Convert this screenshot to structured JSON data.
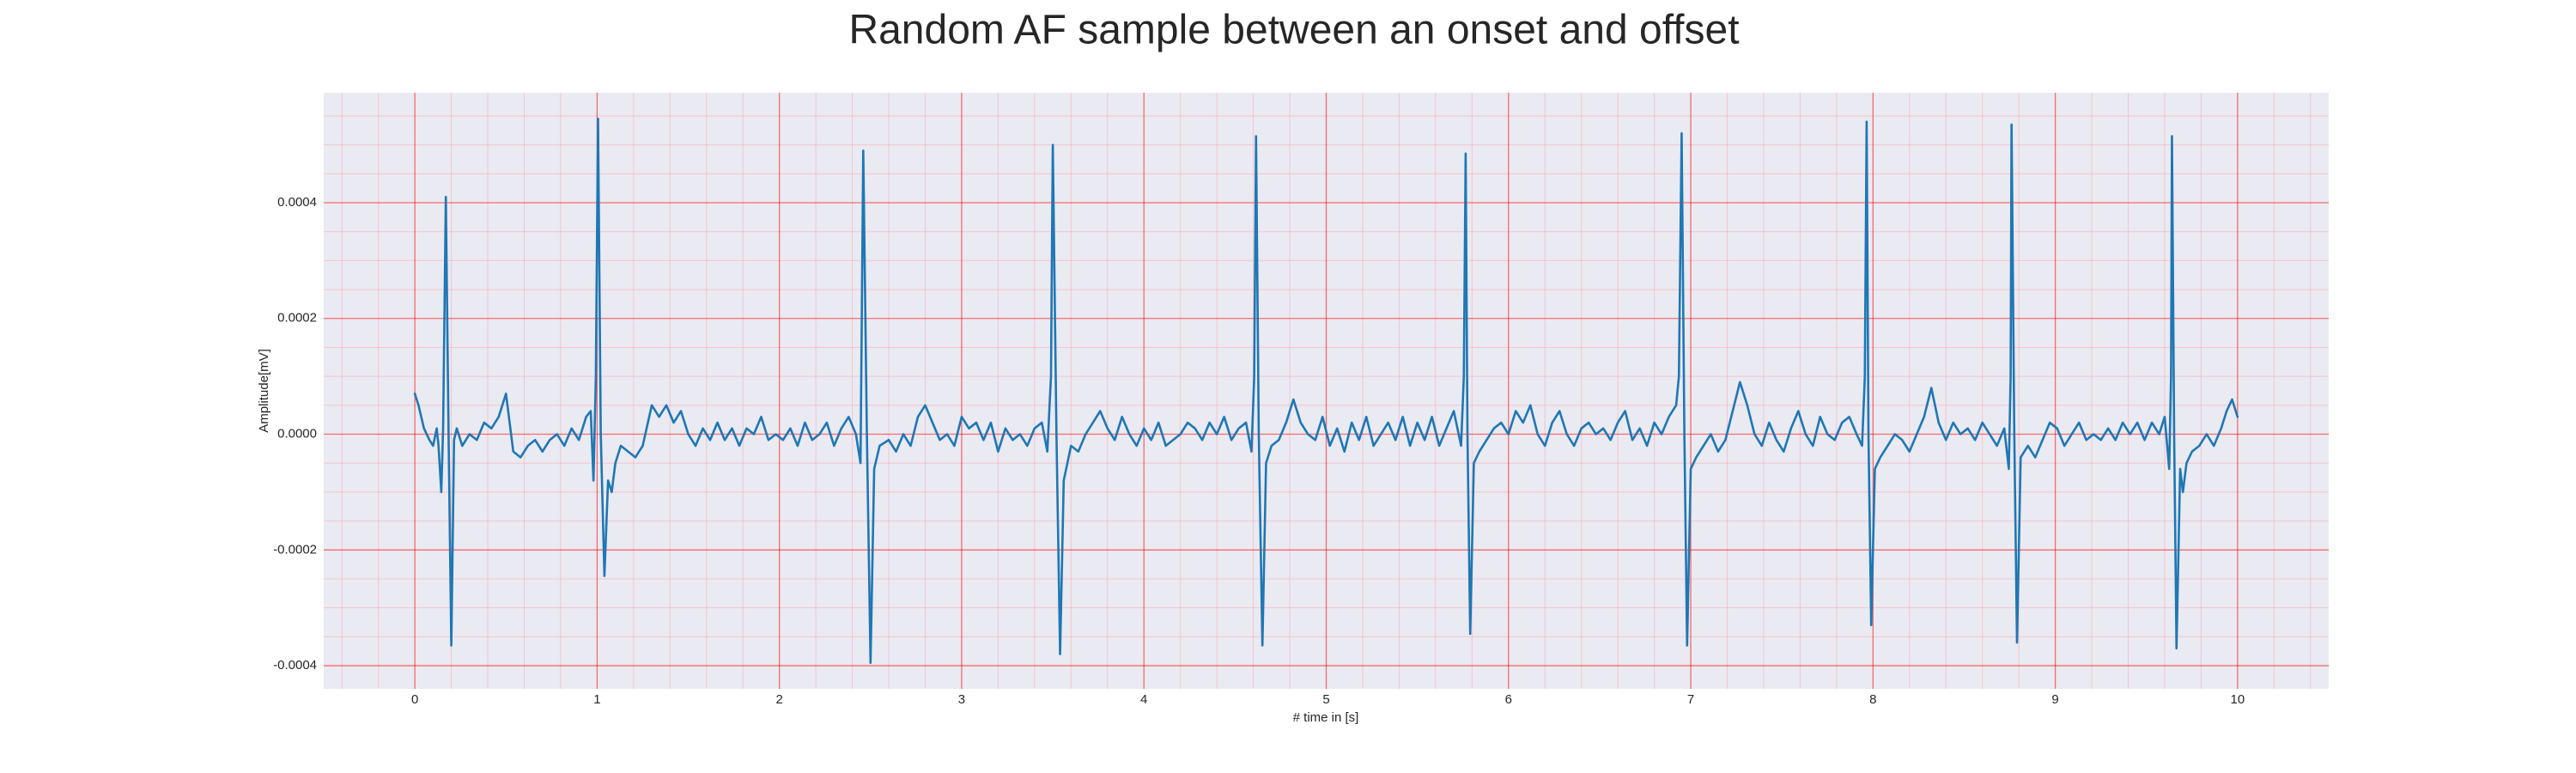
{
  "chart_data": {
    "type": "line",
    "title": "Random AF sample between an onset and offset",
    "xlabel": "# time in [s]",
    "ylabel": "Amplitude[mV]",
    "color": "#1f77b4",
    "grid": true,
    "xlim": [
      -0.5,
      10.5
    ],
    "ylim": [
      -0.00044,
      0.00059
    ],
    "xticks": [
      0,
      1,
      2,
      3,
      4,
      5,
      6,
      7,
      8,
      9,
      10
    ],
    "yticks": [
      -0.0004,
      -0.0002,
      {
        "value": 0,
        "label": "0.0000"
      },
      0.0002,
      0.0004
    ],
    "xminorticks": [
      -0.4,
      -0.2,
      0.2,
      0.4,
      0.6,
      0.8,
      1.2,
      1.4,
      1.6,
      1.8,
      2.2,
      2.4,
      2.6,
      2.8,
      3.2,
      3.4,
      3.6,
      3.8,
      4.2,
      4.4,
      4.6,
      4.8,
      5.2,
      5.4,
      5.6,
      5.8,
      6.2,
      6.4,
      6.6,
      6.8,
      7.2,
      7.4,
      7.6,
      7.8,
      8.2,
      8.4,
      8.6,
      8.8,
      9.2,
      9.4,
      9.6,
      9.8,
      10.2,
      10.4
    ],
    "yminorticks": [
      -0.00035,
      -0.0003,
      -0.00025,
      -0.00015,
      -0.0001,
      -5e-05,
      5e-05,
      0.0001,
      0.00015,
      0.00025,
      0.0003,
      0.00035,
      0.00045,
      0.0005,
      0.00055
    ],
    "x": [
      0,
      0.02,
      0.05,
      0.08,
      0.1,
      0.12,
      0.13,
      0.145,
      0.155,
      0.17,
      0.185,
      0.2,
      0.215,
      0.23,
      0.26,
      0.3,
      0.34,
      0.38,
      0.42,
      0.46,
      0.5,
      0.54,
      0.58,
      0.62,
      0.66,
      0.7,
      0.74,
      0.78,
      0.82,
      0.86,
      0.9,
      0.94,
      0.965,
      0.98,
      0.993,
      1.005,
      1.02,
      1.04,
      1.06,
      1.08,
      1.1,
      1.13,
      1.17,
      1.21,
      1.25,
      1.3,
      1.34,
      1.38,
      1.42,
      1.46,
      1.5,
      1.54,
      1.58,
      1.62,
      1.66,
      1.7,
      1.74,
      1.78,
      1.82,
      1.86,
      1.9,
      1.94,
      1.98,
      2.02,
      2.06,
      2.1,
      2.14,
      2.18,
      2.22,
      2.26,
      2.3,
      2.34,
      2.38,
      2.42,
      2.445,
      2.46,
      2.48,
      2.5,
      2.52,
      2.55,
      2.6,
      2.64,
      2.68,
      2.72,
      2.76,
      2.8,
      2.84,
      2.88,
      2.92,
      2.96,
      3.0,
      3.04,
      3.08,
      3.12,
      3.16,
      3.2,
      3.24,
      3.28,
      3.32,
      3.36,
      3.4,
      3.44,
      3.47,
      3.49,
      3.5,
      3.52,
      3.54,
      3.56,
      3.6,
      3.64,
      3.68,
      3.72,
      3.76,
      3.8,
      3.84,
      3.88,
      3.92,
      3.96,
      4.0,
      4.04,
      4.08,
      4.12,
      4.16,
      4.2,
      4.24,
      4.28,
      4.32,
      4.36,
      4.4,
      4.44,
      4.48,
      4.52,
      4.56,
      4.59,
      4.605,
      4.615,
      4.63,
      4.65,
      4.67,
      4.7,
      4.74,
      4.78,
      4.82,
      4.86,
      4.9,
      4.94,
      4.98,
      5.02,
      5.06,
      5.1,
      5.14,
      5.18,
      5.22,
      5.26,
      5.3,
      5.34,
      5.38,
      5.42,
      5.46,
      5.5,
      5.54,
      5.58,
      5.62,
      5.66,
      5.7,
      5.74,
      5.755,
      5.765,
      5.775,
      5.79,
      5.81,
      5.84,
      5.88,
      5.92,
      5.96,
      6.0,
      6.04,
      6.08,
      6.12,
      6.16,
      6.2,
      6.24,
      6.28,
      6.32,
      6.36,
      6.4,
      6.44,
      6.48,
      6.52,
      6.56,
      6.6,
      6.64,
      6.68,
      6.72,
      6.76,
      6.8,
      6.84,
      6.88,
      6.92,
      6.935,
      6.95,
      6.965,
      6.98,
      7.0,
      7.03,
      7.07,
      7.11,
      7.15,
      7.19,
      7.23,
      7.27,
      7.31,
      7.35,
      7.39,
      7.43,
      7.47,
      7.51,
      7.55,
      7.59,
      7.63,
      7.67,
      7.71,
      7.75,
      7.79,
      7.83,
      7.87,
      7.91,
      7.94,
      7.955,
      7.965,
      7.975,
      7.99,
      8.01,
      8.04,
      8.08,
      8.12,
      8.16,
      8.2,
      8.24,
      8.28,
      8.32,
      8.36,
      8.4,
      8.44,
      8.48,
      8.52,
      8.56,
      8.6,
      8.64,
      8.68,
      8.72,
      8.745,
      8.755,
      8.76,
      8.775,
      8.79,
      8.81,
      8.85,
      8.89,
      8.93,
      8.97,
      9.01,
      9.05,
      9.09,
      9.13,
      9.17,
      9.21,
      9.25,
      9.29,
      9.33,
      9.37,
      9.41,
      9.45,
      9.49,
      9.53,
      9.57,
      9.6,
      9.625,
      9.635,
      9.64,
      9.652,
      9.665,
      9.685,
      9.7,
      9.72,
      9.75,
      9.79,
      9.83,
      9.87,
      9.91,
      9.94,
      9.97,
      10.0
    ],
    "values": [
      7e-05,
      5e-05,
      1e-05,
      -1e-05,
      -2e-05,
      1e-05,
      -2e-05,
      -0.0001,
      1e-05,
      0.00041,
      0,
      -0.000365,
      -1e-05,
      1e-05,
      -2e-05,
      0,
      -1e-05,
      2e-05,
      1e-05,
      3e-05,
      7e-05,
      -3e-05,
      -4e-05,
      -2e-05,
      -1e-05,
      -3e-05,
      -1e-05,
      0,
      -2e-05,
      1e-05,
      -1e-05,
      3e-05,
      4e-05,
      -8e-05,
      0.0001,
      0.000545,
      0,
      -0.000245,
      -8e-05,
      -0.0001,
      -5e-05,
      -2e-05,
      -3e-05,
      -4e-05,
      -2e-05,
      5e-05,
      3e-05,
      5e-05,
      2e-05,
      4e-05,
      0,
      -2e-05,
      1e-05,
      -1e-05,
      2e-05,
      -1e-05,
      1e-05,
      -2e-05,
      1e-05,
      0,
      3e-05,
      -1e-05,
      0,
      -1e-05,
      1e-05,
      -2e-05,
      2e-05,
      -1e-05,
      0,
      2e-05,
      -2e-05,
      1e-05,
      3e-05,
      0,
      -5e-05,
      0.00049,
      0,
      -0.000395,
      -6e-05,
      -2e-05,
      -1e-05,
      -3e-05,
      0,
      -2e-05,
      3e-05,
      5e-05,
      2e-05,
      -1e-05,
      0,
      -2e-05,
      3e-05,
      1e-05,
      2e-05,
      -1e-05,
      2e-05,
      -3e-05,
      1e-05,
      -1e-05,
      0,
      -2e-05,
      1e-05,
      2e-05,
      -3e-05,
      0.0001,
      0.0005,
      0,
      -0.00038,
      -8e-05,
      -2e-05,
      -3e-05,
      0,
      2e-05,
      4e-05,
      1e-05,
      -1e-05,
      3e-05,
      0,
      -2e-05,
      1e-05,
      -1e-05,
      2e-05,
      -2e-05,
      -1e-05,
      0,
      2e-05,
      1e-05,
      -1e-05,
      2e-05,
      0,
      3e-05,
      -1e-05,
      1e-05,
      2e-05,
      -3e-05,
      0.0001,
      0.000515,
      0,
      -0.000365,
      -5e-05,
      -2e-05,
      -1e-05,
      2e-05,
      6e-05,
      2e-05,
      0,
      -1e-05,
      3e-05,
      -2e-05,
      1e-05,
      -3e-05,
      2e-05,
      -1e-05,
      3e-05,
      -2e-05,
      0,
      2e-05,
      -1e-05,
      3e-05,
      -2e-05,
      2e-05,
      -1e-05,
      3e-05,
      -2e-05,
      1e-05,
      4e-05,
      -2e-05,
      0.0001,
      0.000485,
      0,
      -0.000345,
      -5e-05,
      -3e-05,
      -1e-05,
      1e-05,
      2e-05,
      0,
      4e-05,
      2e-05,
      5e-05,
      0,
      -2e-05,
      2e-05,
      4e-05,
      0,
      -2e-05,
      1e-05,
      2e-05,
      0,
      1e-05,
      -1e-05,
      2e-05,
      4e-05,
      -1e-05,
      1e-05,
      -2e-05,
      2e-05,
      0,
      3e-05,
      5e-05,
      0.0001,
      0.00052,
      0,
      -0.000365,
      -6e-05,
      -4e-05,
      -2e-05,
      0,
      -3e-05,
      -1e-05,
      4e-05,
      9e-05,
      5e-05,
      0,
      -2e-05,
      2e-05,
      -1e-05,
      -3e-05,
      1e-05,
      4e-05,
      0,
      -2e-05,
      3e-05,
      0,
      -1e-05,
      2e-05,
      3e-05,
      0,
      -2e-05,
      0.0001,
      0.00054,
      0,
      -0.00033,
      -6e-05,
      -4e-05,
      -2e-05,
      0,
      -1e-05,
      -3e-05,
      0,
      3e-05,
      8e-05,
      2e-05,
      -1e-05,
      2e-05,
      0,
      1e-05,
      -1e-05,
      2e-05,
      0,
      -2e-05,
      1e-05,
      -6e-05,
      0.0001,
      0.000535,
      0,
      -0.00036,
      -4e-05,
      -2e-05,
      -4e-05,
      -1e-05,
      2e-05,
      1e-05,
      -2e-05,
      0,
      2e-05,
      -1e-05,
      0,
      -1e-05,
      1e-05,
      -1e-05,
      2e-05,
      0,
      2e-05,
      -1e-05,
      2e-05,
      0,
      3e-05,
      -6e-05,
      0.0001,
      0.000515,
      0,
      -0.00037,
      -6e-05,
      -0.0001,
      -5e-05,
      -3e-05,
      -2e-05,
      0,
      -2e-05,
      1e-05,
      4e-05,
      6e-05,
      3e-05
    ]
  }
}
